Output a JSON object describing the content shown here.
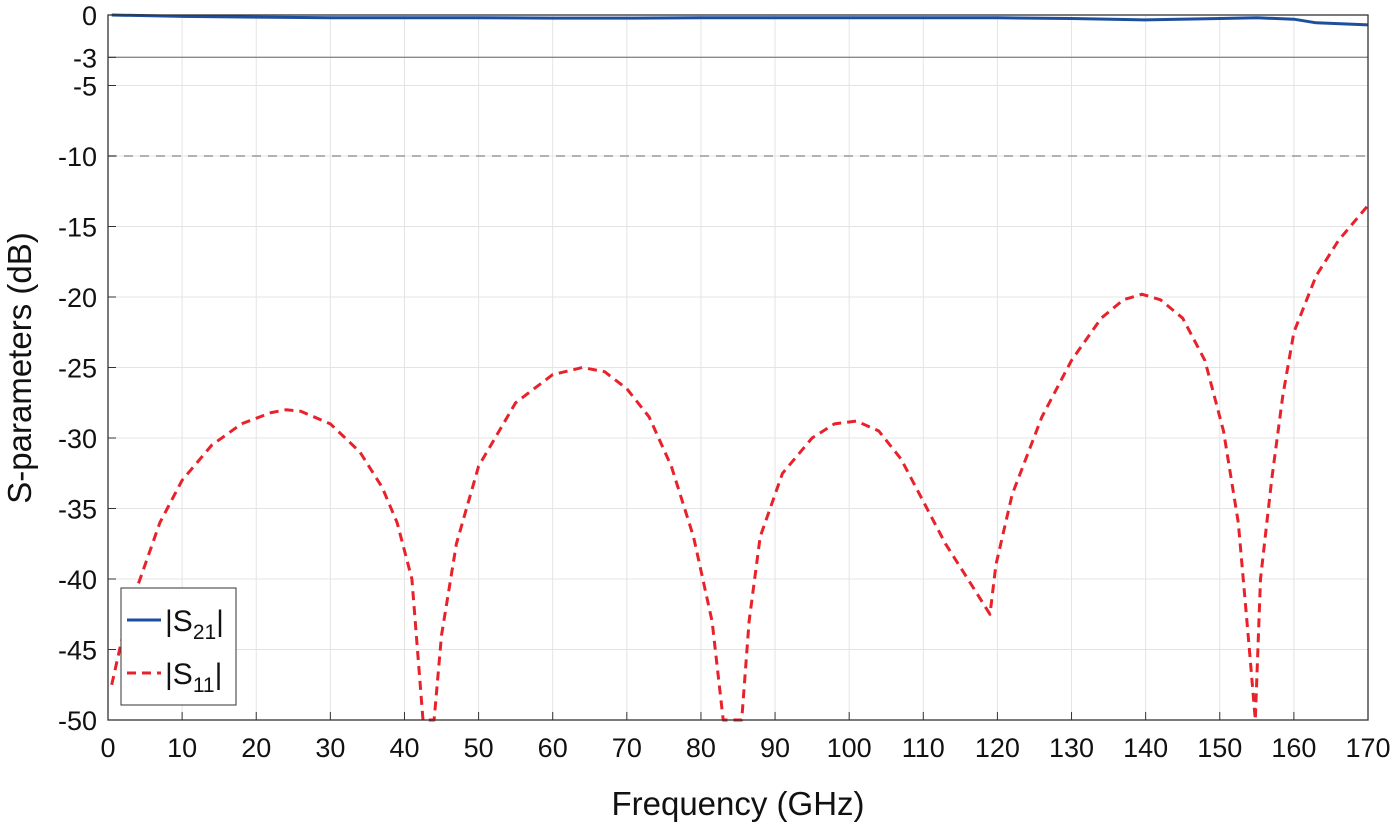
{
  "chart_data": {
    "type": "line",
    "xlabel": "Frequency (GHz)",
    "ylabel": "S-parameters (dB)",
    "xlim": [
      0,
      170
    ],
    "ylim": [
      -50,
      0
    ],
    "xticks": [
      0,
      10,
      20,
      30,
      40,
      50,
      60,
      70,
      80,
      90,
      100,
      110,
      120,
      130,
      140,
      150,
      160,
      170
    ],
    "yticks": [
      0,
      -3,
      -5,
      -10,
      -15,
      -20,
      -25,
      -30,
      -35,
      -40,
      -45,
      -50
    ],
    "grid": true,
    "reference_lines": [
      {
        "y": -3,
        "style": "solid"
      },
      {
        "y": -10,
        "style": "dashed"
      }
    ],
    "legend_position": "bottom-left",
    "series": [
      {
        "name": "|S21|",
        "color": "#1f4e9c",
        "style": "solid",
        "x": [
          0.5,
          10,
          20,
          30,
          40,
          50,
          60,
          70,
          80,
          90,
          100,
          110,
          120,
          130,
          140,
          150,
          155,
          160,
          163,
          170
        ],
        "y": [
          0,
          -0.1,
          -0.15,
          -0.2,
          -0.2,
          -0.2,
          -0.22,
          -0.22,
          -0.2,
          -0.2,
          -0.2,
          -0.2,
          -0.2,
          -0.25,
          -0.35,
          -0.25,
          -0.2,
          -0.3,
          -0.55,
          -0.7
        ]
      },
      {
        "name": "|S11|",
        "color": "#e8222b",
        "style": "dashed",
        "x": [
          0.5,
          2,
          4,
          7,
          10,
          14,
          18,
          22,
          24,
          26,
          30,
          34,
          37,
          39,
          41,
          42.5,
          44,
          45,
          47,
          50,
          55,
          60,
          64,
          67,
          70,
          73,
          76,
          79,
          81.5,
          83,
          84,
          85.5,
          86.5,
          88,
          91,
          95,
          98,
          101,
          104,
          107,
          110,
          113,
          116,
          119,
          119.8,
          122,
          126,
          130,
          134,
          137,
          139.5,
          142,
          145,
          148,
          150.5,
          152.5,
          154,
          154.8,
          155.5,
          157,
          158.5,
          160,
          163,
          166,
          170
        ],
        "y": [
          -47.5,
          -44,
          -40.5,
          -36,
          -33,
          -30.5,
          -29,
          -28.2,
          -28,
          -28.1,
          -29,
          -31,
          -33.5,
          -36,
          -40,
          -50,
          -50,
          -44,
          -37.5,
          -32,
          -27.5,
          -25.5,
          -25,
          -25.3,
          -26.5,
          -28.5,
          -32,
          -37,
          -43,
          -50,
          -50,
          -50,
          -43,
          -37,
          -32.5,
          -30,
          -29,
          -28.8,
          -29.5,
          -31.5,
          -34.5,
          -37.5,
          -40,
          -42.5,
          -39,
          -34,
          -28.5,
          -24.5,
          -21.5,
          -20.2,
          -19.8,
          -20.2,
          -21.5,
          -24.5,
          -29.5,
          -36,
          -45,
          -50,
          -40,
          -33,
          -27,
          -22.5,
          -18.5,
          -16,
          -13.5
        ]
      }
    ]
  }
}
